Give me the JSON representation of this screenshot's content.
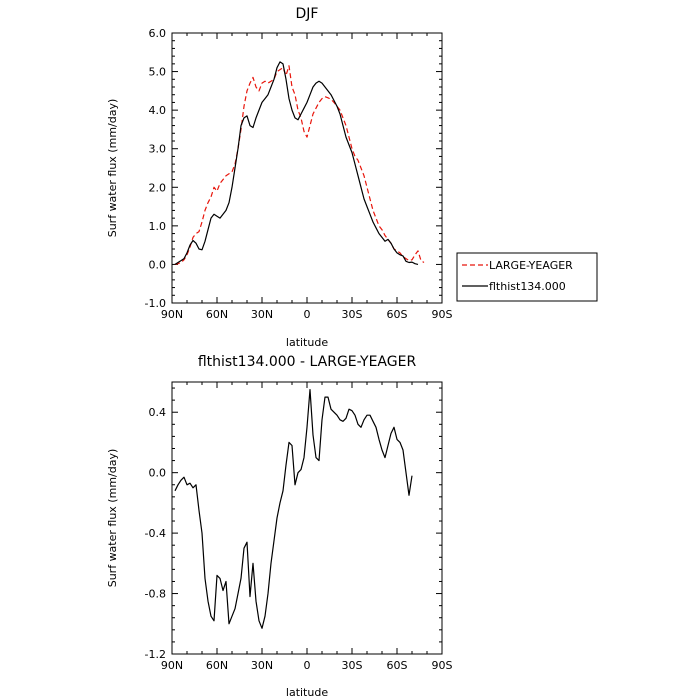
{
  "chart_data": [
    {
      "type": "line",
      "title": "DJF",
      "xlabel": "latitude",
      "ylabel": "Surf water flux (mm/day)",
      "xlim": [
        -90,
        90
      ],
      "ylim": [
        -1.0,
        6.0
      ],
      "x_ticks": [
        -90,
        -60,
        -30,
        0,
        30,
        60,
        90
      ],
      "x_tick_labels": [
        "90N",
        "60N",
        "30N",
        "0",
        "30S",
        "60S",
        "90S"
      ],
      "y_ticks": [
        -1.0,
        0.0,
        1.0,
        2.0,
        3.0,
        4.0,
        5.0,
        6.0
      ],
      "y_tick_labels": [
        "-1.0",
        "0.0",
        "1.0",
        "2.0",
        "3.0",
        "4.0",
        "5.0",
        "6.0"
      ],
      "legend_position": "right",
      "series": [
        {
          "name": "LARGE-YEAGER",
          "color": "#e8160c",
          "dash": "dashed",
          "points": [
            [
              -88,
              0.0
            ],
            [
              -86,
              0.02
            ],
            [
              -84,
              0.05
            ],
            [
              -82,
              0.12
            ],
            [
              -80,
              0.25
            ],
            [
              -78,
              0.45
            ],
            [
              -76,
              0.7
            ],
            [
              -74,
              0.8
            ],
            [
              -72,
              0.85
            ],
            [
              -70,
              1.1
            ],
            [
              -68,
              1.4
            ],
            [
              -66,
              1.6
            ],
            [
              -64,
              1.75
            ],
            [
              -62,
              2.0
            ],
            [
              -60,
              1.9
            ],
            [
              -58,
              2.1
            ],
            [
              -56,
              2.2
            ],
            [
              -54,
              2.3
            ],
            [
              -52,
              2.35
            ],
            [
              -50,
              2.4
            ],
            [
              -48,
              2.6
            ],
            [
              -46,
              3.0
            ],
            [
              -44,
              3.5
            ],
            [
              -42,
              4.1
            ],
            [
              -40,
              4.5
            ],
            [
              -38,
              4.7
            ],
            [
              -36,
              4.85
            ],
            [
              -34,
              4.6
            ],
            [
              -32,
              4.5
            ],
            [
              -30,
              4.7
            ],
            [
              -28,
              4.75
            ],
            [
              -26,
              4.7
            ],
            [
              -24,
              4.75
            ],
            [
              -22,
              4.8
            ],
            [
              -20,
              5.0
            ],
            [
              -18,
              5.05
            ],
            [
              -16,
              5.1
            ],
            [
              -14,
              4.9
            ],
            [
              -12,
              5.15
            ],
            [
              -10,
              4.6
            ],
            [
              -8,
              4.4
            ],
            [
              -6,
              4.0
            ],
            [
              -4,
              3.8
            ],
            [
              -2,
              3.45
            ],
            [
              0,
              3.3
            ],
            [
              2,
              3.6
            ],
            [
              4,
              3.9
            ],
            [
              6,
              4.05
            ],
            [
              8,
              4.2
            ],
            [
              10,
              4.3
            ],
            [
              12,
              4.35
            ],
            [
              14,
              4.32
            ],
            [
              16,
              4.28
            ],
            [
              18,
              4.2
            ],
            [
              20,
              4.1
            ],
            [
              22,
              4.0
            ],
            [
              24,
              3.8
            ],
            [
              26,
              3.6
            ],
            [
              28,
              3.3
            ],
            [
              30,
              3.0
            ],
            [
              32,
              2.8
            ],
            [
              34,
              2.7
            ],
            [
              36,
              2.5
            ],
            [
              38,
              2.3
            ],
            [
              40,
              2.0
            ],
            [
              42,
              1.7
            ],
            [
              44,
              1.4
            ],
            [
              46,
              1.2
            ],
            [
              48,
              1.0
            ],
            [
              50,
              0.9
            ],
            [
              52,
              0.75
            ],
            [
              54,
              0.65
            ],
            [
              56,
              0.55
            ],
            [
              58,
              0.4
            ],
            [
              60,
              0.35
            ],
            [
              62,
              0.3
            ],
            [
              64,
              0.2
            ],
            [
              66,
              0.15
            ],
            [
              68,
              0.1
            ],
            [
              70,
              0.12
            ],
            [
              72,
              0.25
            ],
            [
              74,
              0.35
            ],
            [
              76,
              0.1
            ],
            [
              78,
              0.05
            ]
          ]
        },
        {
          "name": "flthist134.000",
          "color": "#000000",
          "dash": "solid",
          "points": [
            [
              -88,
              0.0
            ],
            [
              -86,
              0.05
            ],
            [
              -84,
              0.1
            ],
            [
              -82,
              0.15
            ],
            [
              -80,
              0.3
            ],
            [
              -78,
              0.5
            ],
            [
              -76,
              0.62
            ],
            [
              -74,
              0.55
            ],
            [
              -72,
              0.4
            ],
            [
              -70,
              0.38
            ],
            [
              -68,
              0.6
            ],
            [
              -66,
              0.9
            ],
            [
              -64,
              1.2
            ],
            [
              -62,
              1.3
            ],
            [
              -60,
              1.25
            ],
            [
              -58,
              1.2
            ],
            [
              -56,
              1.3
            ],
            [
              -54,
              1.4
            ],
            [
              -52,
              1.6
            ],
            [
              -50,
              2.0
            ],
            [
              -48,
              2.5
            ],
            [
              -46,
              3.0
            ],
            [
              -44,
              3.6
            ],
            [
              -42,
              3.8
            ],
            [
              -40,
              3.85
            ],
            [
              -38,
              3.6
            ],
            [
              -36,
              3.55
            ],
            [
              -34,
              3.8
            ],
            [
              -32,
              4.0
            ],
            [
              -30,
              4.2
            ],
            [
              -28,
              4.3
            ],
            [
              -26,
              4.4
            ],
            [
              -24,
              4.6
            ],
            [
              -22,
              4.8
            ],
            [
              -20,
              5.1
            ],
            [
              -18,
              5.25
            ],
            [
              -16,
              5.2
            ],
            [
              -14,
              4.8
            ],
            [
              -12,
              4.3
            ],
            [
              -10,
              4.0
            ],
            [
              -8,
              3.8
            ],
            [
              -6,
              3.75
            ],
            [
              -4,
              3.9
            ],
            [
              -2,
              4.05
            ],
            [
              0,
              4.2
            ],
            [
              2,
              4.4
            ],
            [
              4,
              4.6
            ],
            [
              6,
              4.7
            ],
            [
              8,
              4.75
            ],
            [
              10,
              4.7
            ],
            [
              12,
              4.6
            ],
            [
              14,
              4.5
            ],
            [
              16,
              4.4
            ],
            [
              18,
              4.25
            ],
            [
              20,
              4.1
            ],
            [
              22,
              3.9
            ],
            [
              24,
              3.6
            ],
            [
              26,
              3.3
            ],
            [
              28,
              3.1
            ],
            [
              30,
              2.9
            ],
            [
              32,
              2.6
            ],
            [
              34,
              2.3
            ],
            [
              36,
              2.0
            ],
            [
              38,
              1.7
            ],
            [
              40,
              1.5
            ],
            [
              42,
              1.3
            ],
            [
              44,
              1.1
            ],
            [
              46,
              0.95
            ],
            [
              48,
              0.8
            ],
            [
              50,
              0.7
            ],
            [
              52,
              0.6
            ],
            [
              54,
              0.65
            ],
            [
              56,
              0.55
            ],
            [
              58,
              0.4
            ],
            [
              60,
              0.3
            ],
            [
              62,
              0.25
            ],
            [
              64,
              0.22
            ],
            [
              66,
              0.08
            ],
            [
              68,
              0.05
            ],
            [
              70,
              0.06
            ],
            [
              72,
              0.02
            ],
            [
              74,
              0.0
            ]
          ]
        }
      ]
    },
    {
      "type": "line",
      "title": "flthist134.000 - LARGE-YEAGER",
      "xlabel": "latitude",
      "ylabel": "Surf water flux (mm/day)",
      "xlim": [
        -90,
        90
      ],
      "ylim": [
        -1.2,
        0.6
      ],
      "x_ticks": [
        -90,
        -60,
        -30,
        0,
        30,
        60,
        90
      ],
      "x_tick_labels": [
        "90N",
        "60N",
        "30N",
        "0",
        "30S",
        "60S",
        "90S"
      ],
      "y_ticks": [
        -1.2,
        -0.8,
        -0.4,
        0.0,
        0.4
      ],
      "y_tick_labels": [
        "-1.2",
        "-0.8",
        "-0.4",
        "0.0",
        "0.4"
      ],
      "series": [
        {
          "color": "#000000",
          "dash": "solid",
          "points": [
            [
              -88,
              -0.12
            ],
            [
              -86,
              -0.08
            ],
            [
              -84,
              -0.05
            ],
            [
              -82,
              -0.03
            ],
            [
              -80,
              -0.08
            ],
            [
              -78,
              -0.07
            ],
            [
              -76,
              -0.1
            ],
            [
              -74,
              -0.08
            ],
            [
              -72,
              -0.25
            ],
            [
              -70,
              -0.4
            ],
            [
              -68,
              -0.7
            ],
            [
              -66,
              -0.85
            ],
            [
              -64,
              -0.95
            ],
            [
              -62,
              -0.98
            ],
            [
              -60,
              -0.68
            ],
            [
              -58,
              -0.7
            ],
            [
              -56,
              -0.78
            ],
            [
              -54,
              -0.72
            ],
            [
              -52,
              -1.0
            ],
            [
              -50,
              -0.95
            ],
            [
              -48,
              -0.9
            ],
            [
              -46,
              -0.8
            ],
            [
              -44,
              -0.7
            ],
            [
              -42,
              -0.5
            ],
            [
              -40,
              -0.46
            ],
            [
              -38,
              -0.82
            ],
            [
              -36,
              -0.6
            ],
            [
              -34,
              -0.85
            ],
            [
              -32,
              -0.98
            ],
            [
              -30,
              -1.03
            ],
            [
              -28,
              -0.95
            ],
            [
              -26,
              -0.8
            ],
            [
              -24,
              -0.6
            ],
            [
              -22,
              -0.45
            ],
            [
              -20,
              -0.3
            ],
            [
              -18,
              -0.2
            ],
            [
              -16,
              -0.12
            ],
            [
              -14,
              0.05
            ],
            [
              -12,
              0.2
            ],
            [
              -10,
              0.18
            ],
            [
              -8,
              -0.08
            ],
            [
              -6,
              0.0
            ],
            [
              -4,
              0.02
            ],
            [
              -2,
              0.1
            ],
            [
              0,
              0.3
            ],
            [
              2,
              0.55
            ],
            [
              4,
              0.25
            ],
            [
              6,
              0.1
            ],
            [
              8,
              0.08
            ],
            [
              10,
              0.35
            ],
            [
              12,
              0.5
            ],
            [
              14,
              0.5
            ],
            [
              16,
              0.42
            ],
            [
              18,
              0.4
            ],
            [
              20,
              0.38
            ],
            [
              22,
              0.35
            ],
            [
              24,
              0.34
            ],
            [
              26,
              0.36
            ],
            [
              28,
              0.42
            ],
            [
              30,
              0.41
            ],
            [
              32,
              0.38
            ],
            [
              34,
              0.32
            ],
            [
              36,
              0.3
            ],
            [
              38,
              0.35
            ],
            [
              40,
              0.38
            ],
            [
              42,
              0.38
            ],
            [
              44,
              0.34
            ],
            [
              46,
              0.3
            ],
            [
              48,
              0.22
            ],
            [
              50,
              0.15
            ],
            [
              52,
              0.1
            ],
            [
              54,
              0.18
            ],
            [
              56,
              0.26
            ],
            [
              58,
              0.3
            ],
            [
              60,
              0.22
            ],
            [
              62,
              0.2
            ],
            [
              64,
              0.15
            ],
            [
              66,
              0.0
            ],
            [
              68,
              -0.15
            ],
            [
              70,
              -0.02
            ]
          ]
        }
      ]
    }
  ]
}
